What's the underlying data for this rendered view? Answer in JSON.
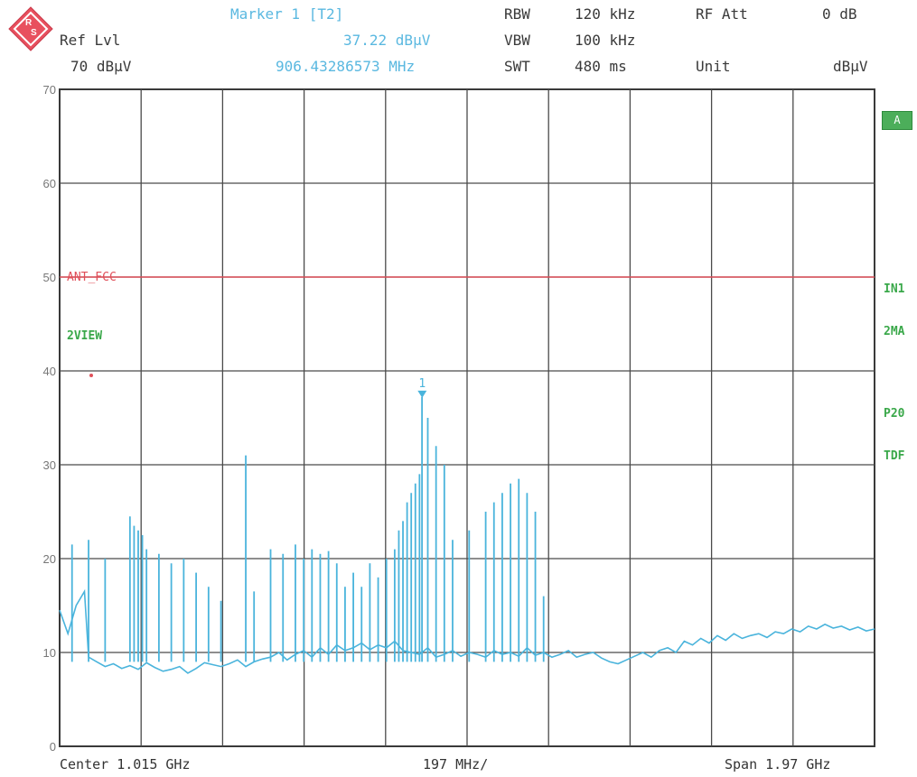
{
  "header": {
    "ref_lvl_label": "Ref Lvl",
    "ref_lvl_value": "70 dBµV",
    "marker_title": "Marker 1 [T2]",
    "marker_level": "37.22 dBµV",
    "marker_freq": "906.43286573 MHz",
    "rbw_label": "RBW",
    "rbw_value": "120 kHz",
    "vbw_label": "VBW",
    "vbw_value": "100 kHz",
    "swt_label": "SWT",
    "swt_value": "480 ms",
    "rfatt_label": "RF Att",
    "rfatt_value": "0 dB",
    "unit_label": "Unit",
    "unit_value": "dBµV"
  },
  "side_labels": {
    "a": "A",
    "in1": "IN1",
    "twoma": "2MA",
    "p20": "P20",
    "tdf": "TDF"
  },
  "chart_data": {
    "type": "line",
    "title": "",
    "xlabel": "",
    "ylabel": "",
    "ylim": [
      0,
      70
    ],
    "yticks": [
      0,
      10,
      20,
      30,
      40,
      50,
      60,
      70
    ],
    "xlim_ghz": [
      0.03,
      2.0
    ],
    "x_divisions": 10,
    "grid": true,
    "limit_line": {
      "name": "ANT_FCC",
      "value": 50,
      "color": "#e0505a"
    },
    "trace_label": "2VIEW",
    "marker": {
      "label": "1",
      "x_mhz": 906.43286573,
      "y": 37.22
    },
    "footer": {
      "center": "Center 1.015 GHz",
      "div": "197 MHz/",
      "span": "Span 1.97 GHz"
    },
    "trace_color": "#4ab4dc",
    "series": [
      {
        "x_ghz": [
          0.03,
          0.05,
          0.07,
          0.09,
          0.1,
          0.12,
          0.14,
          0.16,
          0.18,
          0.2,
          0.22,
          0.24,
          0.26,
          0.28,
          0.3,
          0.32,
          0.34,
          0.36,
          0.38,
          0.4,
          0.42,
          0.44,
          0.46,
          0.48,
          0.5,
          0.52,
          0.54,
          0.56,
          0.58,
          0.6,
          0.62,
          0.64,
          0.66,
          0.68,
          0.7,
          0.72,
          0.74,
          0.76,
          0.78,
          0.8,
          0.82,
          0.84,
          0.86,
          0.88,
          0.9,
          0.92,
          0.94,
          0.96,
          0.98,
          1.0,
          1.02,
          1.04,
          1.06,
          1.08,
          1.1,
          1.12,
          1.14,
          1.16,
          1.18,
          1.2,
          1.22,
          1.24,
          1.26,
          1.28,
          1.3,
          1.32,
          1.34,
          1.36,
          1.38,
          1.4,
          1.42,
          1.44,
          1.46,
          1.48,
          1.5,
          1.52,
          1.54,
          1.56,
          1.58,
          1.6,
          1.62,
          1.64,
          1.66,
          1.68,
          1.7,
          1.72,
          1.74,
          1.76,
          1.78,
          1.8,
          1.82,
          1.84,
          1.86,
          1.88,
          1.9,
          1.92,
          1.94,
          1.96,
          1.98,
          2.0
        ],
        "y": [
          14.5,
          12,
          15,
          16.5,
          9.5,
          9,
          8.5,
          8.8,
          8.3,
          8.6,
          8.2,
          8.9,
          8.4,
          8.0,
          8.2,
          8.5,
          7.8,
          8.3,
          8.9,
          8.7,
          8.5,
          8.8,
          9.2,
          8.5,
          9.0,
          9.3,
          9.5,
          10,
          9.2,
          9.8,
          10.2,
          9.5,
          10.5,
          9.8,
          10.8,
          10.2,
          10.5,
          11,
          10.3,
          10.8,
          10.5,
          11.2,
          10.2,
          10.0,
          9.8,
          10.5,
          9.5,
          9.8,
          10.2,
          9.6,
          10.0,
          9.8,
          9.5,
          10.2,
          9.8,
          10.0,
          9.6,
          10.5,
          9.7,
          10.0,
          9.5,
          9.8,
          10.2,
          9.5,
          9.8,
          10.0,
          9.4,
          9.0,
          8.8,
          9.2,
          9.6,
          10.0,
          9.5,
          10.2,
          10.5,
          10.0,
          11.2,
          10.8,
          11.5,
          11.0,
          11.8,
          11.3,
          12.0,
          11.5,
          11.8,
          12.0,
          11.6,
          12.2,
          12.0,
          12.5,
          12.2,
          12.8,
          12.5,
          13.0,
          12.6,
          12.8,
          12.4,
          12.7,
          12.3,
          12.5
        ]
      }
    ],
    "spikes": {
      "x_ghz": [
        0.06,
        0.1,
        0.14,
        0.2,
        0.21,
        0.22,
        0.23,
        0.24,
        0.27,
        0.3,
        0.33,
        0.36,
        0.39,
        0.42,
        0.48,
        0.5,
        0.54,
        0.57,
        0.6,
        0.62,
        0.64,
        0.66,
        0.68,
        0.7,
        0.72,
        0.74,
        0.76,
        0.78,
        0.8,
        0.82,
        0.84,
        0.85,
        0.86,
        0.87,
        0.88,
        0.89,
        0.9,
        0.906,
        0.92,
        0.94,
        0.96,
        0.98,
        1.02,
        1.06,
        1.08,
        1.1,
        1.12,
        1.14,
        1.16,
        1.18,
        1.2
      ],
      "y": [
        21.5,
        22,
        20,
        24.5,
        23.5,
        23,
        22.5,
        21,
        20.5,
        19.5,
        20,
        18.5,
        17,
        15.5,
        31,
        16.5,
        21,
        20.5,
        21.5,
        20,
        21,
        20.5,
        20.8,
        19.5,
        17,
        18.5,
        17,
        19.5,
        18,
        20,
        21,
        23,
        24,
        26,
        27,
        28,
        29,
        37.22,
        35,
        32,
        30,
        22,
        23,
        25,
        26,
        27,
        28,
        28.5,
        27,
        25,
        16
      ]
    }
  }
}
